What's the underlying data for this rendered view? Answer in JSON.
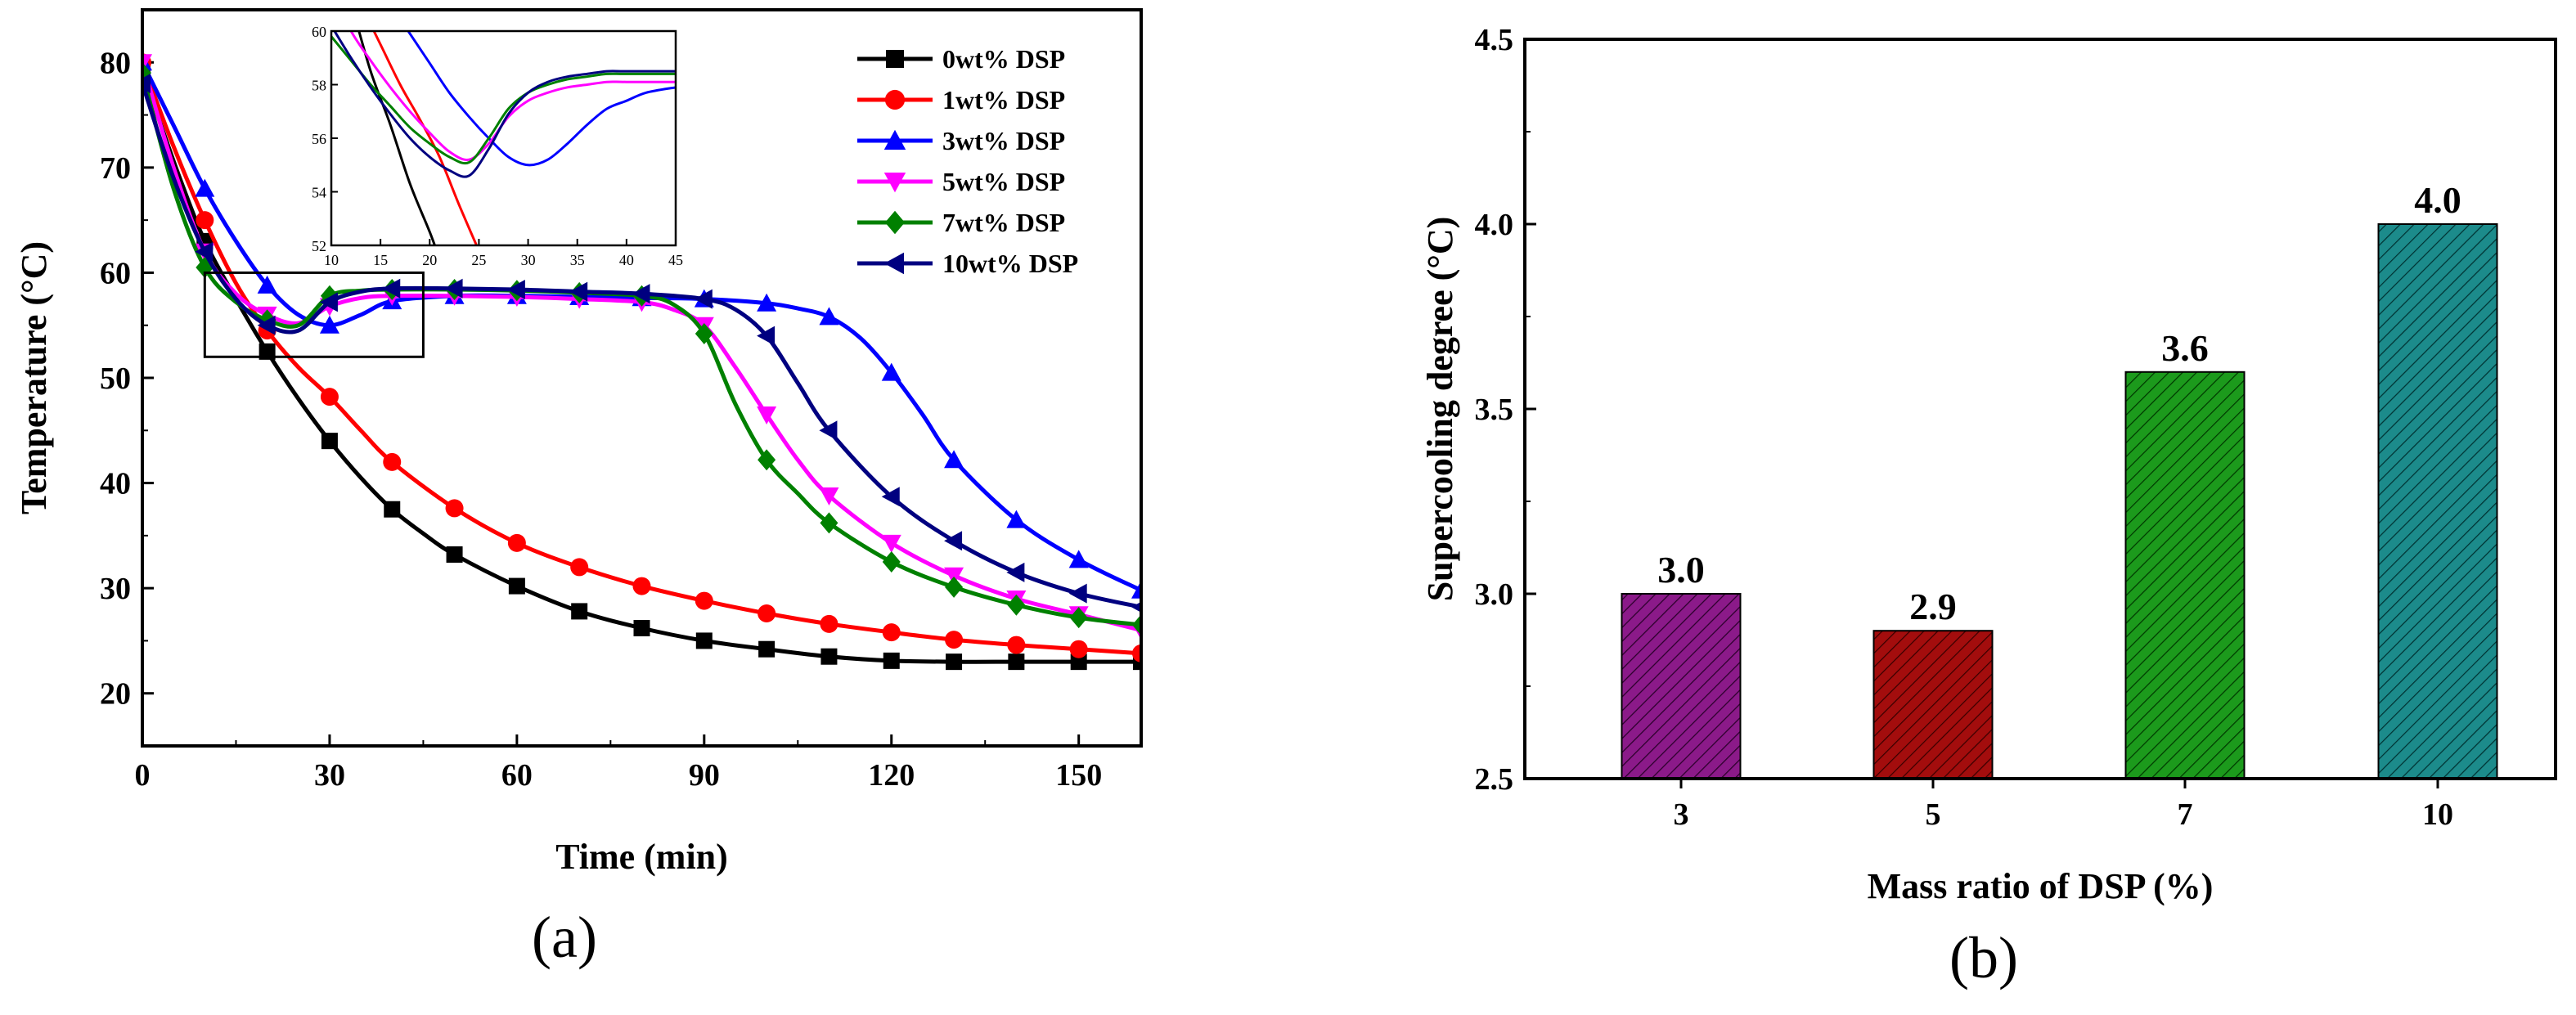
{
  "panel_labels": [
    "(a)",
    "(b)"
  ],
  "chart_data": [
    {
      "type": "line",
      "title": "",
      "xlabel": "Time (min)",
      "ylabel": "Temperature (°C)",
      "xlim": [
        0,
        160
      ],
      "ylim": [
        15,
        85
      ],
      "xticks": [
        "0",
        "30",
        "60",
        "90",
        "120",
        "150"
      ],
      "yticks": [
        "20",
        "30",
        "40",
        "50",
        "60",
        "70",
        "80"
      ],
      "legend_position": "top-right",
      "series": [
        {
          "name": "0wt% DSP",
          "color": "#000000",
          "marker": "square",
          "x": [
            0,
            3,
            6,
            10,
            15,
            20,
            25,
            30,
            35,
            40,
            45,
            50,
            60,
            70,
            80,
            90,
            100,
            110,
            120,
            130,
            140,
            150,
            160
          ],
          "y": [
            79,
            74,
            69,
            63,
            57.5,
            52.5,
            48,
            44,
            40.5,
            37.5,
            35.2,
            33.2,
            30.2,
            27.8,
            26.2,
            25,
            24.2,
            23.5,
            23.1,
            23,
            23,
            23,
            23
          ]
        },
        {
          "name": "1wt% DSP",
          "color": "#ff0000",
          "marker": "circle",
          "x": [
            0,
            5,
            10,
            15,
            20,
            25,
            30,
            35,
            40,
            50,
            60,
            70,
            80,
            90,
            100,
            110,
            120,
            130,
            140,
            150,
            160
          ],
          "y": [
            80,
            72,
            65,
            59,
            54.5,
            51,
            48.2,
            45,
            42,
            37.6,
            34.3,
            32,
            30.2,
            28.8,
            27.6,
            26.6,
            25.8,
            25.1,
            24.6,
            24.2,
            23.8
          ]
        },
        {
          "name": "3wt% DSP",
          "color": "#0000ff",
          "marker": "triangle-up",
          "x": [
            0,
            5,
            10,
            15,
            20,
            25,
            30,
            35,
            40,
            50,
            60,
            70,
            80,
            90,
            100,
            105,
            110,
            115,
            120,
            125,
            130,
            140,
            150,
            160
          ],
          "y": [
            80,
            74,
            68,
            63,
            58.8,
            56,
            55,
            56,
            57.3,
            57.8,
            57.8,
            57.7,
            57.6,
            57.5,
            57.1,
            56.6,
            55.8,
            53.8,
            50.5,
            46.5,
            42.2,
            36.5,
            32.7,
            29.8
          ]
        },
        {
          "name": "5wt% DSP",
          "color": "#ff00ff",
          "marker": "triangle-down",
          "x": [
            0,
            5,
            10,
            15,
            20,
            25,
            30,
            35,
            40,
            50,
            60,
            70,
            80,
            85,
            90,
            95,
            100,
            105,
            110,
            120,
            130,
            140,
            150,
            160
          ],
          "y": [
            80,
            70,
            62,
            58,
            56,
            55.2,
            56.8,
            57.6,
            57.8,
            57.8,
            57.7,
            57.5,
            57.2,
            56.5,
            55,
            51,
            46.5,
            42.2,
            38.8,
            34.3,
            31.2,
            29,
            27.5,
            26
          ]
        },
        {
          "name": "7wt% DSP",
          "color": "#008000",
          "marker": "diamond",
          "x": [
            0,
            5,
            10,
            15,
            20,
            25,
            30,
            35,
            40,
            50,
            60,
            70,
            80,
            85,
            90,
            95,
            100,
            105,
            110,
            120,
            130,
            140,
            150,
            160
          ],
          "y": [
            79,
            68,
            60.5,
            57.2,
            55.5,
            55,
            57.8,
            58.3,
            58.4,
            58.4,
            58.3,
            58.1,
            57.8,
            57,
            54.2,
            47.5,
            42.2,
            39,
            36.2,
            32.5,
            30.1,
            28.4,
            27.2,
            26.5
          ]
        },
        {
          "name": "10wt% DSP",
          "color": "#000080",
          "marker": "triangle-left",
          "x": [
            0,
            5,
            10,
            15,
            20,
            25,
            30,
            35,
            40,
            50,
            60,
            70,
            80,
            90,
            95,
            100,
            105,
            110,
            120,
            130,
            140,
            150,
            160
          ],
          "y": [
            78,
            69,
            62,
            57.5,
            55,
            54.5,
            57.2,
            58.2,
            58.5,
            58.5,
            58.4,
            58.2,
            58,
            57.5,
            56.5,
            54,
            49.5,
            45,
            38.7,
            34.5,
            31.5,
            29.5,
            28.2
          ]
        }
      ],
      "inset": {
        "xlim": [
          10,
          45
        ],
        "ylim": [
          52,
          60
        ],
        "xticks": [
          "10",
          "15",
          "20",
          "25",
          "30",
          "35",
          "40",
          "45"
        ],
        "yticks": [
          "52",
          "54",
          "56",
          "58",
          "60"
        ],
        "zoom_box": {
          "x": [
            10,
            45
          ],
          "y": [
            52,
            60
          ]
        },
        "series": [
          {
            "name": "0wt% DSP",
            "color": "#000000",
            "x": [
              10,
              12,
              14,
              16,
              18,
              20,
              21
            ],
            "y": [
              63,
              61,
              58.5,
              56.5,
              54.3,
              52.5,
              51.5
            ]
          },
          {
            "name": "1wt% DSP",
            "color": "#ff0000",
            "x": [
              13,
              15,
              17,
              19,
              21,
              23,
              25
            ],
            "y": [
              61,
              59.5,
              58,
              56.7,
              55.3,
              53.5,
              51.8
            ]
          },
          {
            "name": "3wt% DSP",
            "color": "#0000ff",
            "x": [
              16,
              18,
              20,
              22,
              24,
              26,
              28,
              30,
              32,
              34,
              36,
              38,
              40,
              42,
              45
            ],
            "y": [
              61,
              59.9,
              58.8,
              57.7,
              56.8,
              56,
              55.3,
              55,
              55.2,
              55.8,
              56.5,
              57.1,
              57.4,
              57.7,
              57.9
            ]
          },
          {
            "name": "5wt% DSP",
            "color": "#ff00ff",
            "x": [
              10,
              12,
              14,
              16,
              18,
              20,
              22,
              24,
              26,
              28,
              30,
              32,
              34,
              36,
              38,
              40,
              45
            ],
            "y": [
              61.5,
              60,
              58.9,
              57.9,
              57,
              56.2,
              55.5,
              55.2,
              55.8,
              56.8,
              57.4,
              57.7,
              57.9,
              58,
              58.1,
              58.1,
              58.1
            ]
          },
          {
            "name": "7wt% DSP",
            "color": "#008000",
            "x": [
              10,
              12,
              14,
              16,
              18,
              20,
              22,
              24,
              26,
              28,
              30,
              32,
              34,
              36,
              38,
              40,
              45
            ],
            "y": [
              59.8,
              58.9,
              58,
              57.2,
              56.4,
              55.8,
              55.3,
              55.1,
              56,
              57.1,
              57.7,
              58,
              58.2,
              58.3,
              58.4,
              58.4,
              58.4
            ]
          },
          {
            "name": "10wt% DSP",
            "color": "#000080",
            "x": [
              10,
              12,
              14,
              16,
              18,
              20,
              22,
              24,
              26,
              28,
              30,
              32,
              34,
              36,
              38,
              40,
              45
            ],
            "y": [
              60.2,
              59,
              57.9,
              56.9,
              56,
              55.3,
              54.8,
              54.6,
              55.6,
              56.9,
              57.7,
              58.1,
              58.3,
              58.4,
              58.5,
              58.5,
              58.5
            ]
          }
        ]
      }
    },
    {
      "type": "bar",
      "title": "",
      "xlabel": "Mass ratio of DSP (%)",
      "ylabel": "Supercooling degree (°C)",
      "ylim": [
        2.5,
        4.5
      ],
      "yticks": [
        "2.5",
        "3.0",
        "3.5",
        "4.0",
        "4.5"
      ],
      "categories": [
        "3",
        "5",
        "7",
        "10"
      ],
      "values": [
        3.0,
        2.9,
        3.6,
        4.0
      ],
      "value_labels": [
        "3.0",
        "2.9",
        "3.6",
        "4.0"
      ],
      "colors": [
        "#8b1a89",
        "#a30d0d",
        "#1c9a1c",
        "#1c8b8b"
      ]
    }
  ]
}
